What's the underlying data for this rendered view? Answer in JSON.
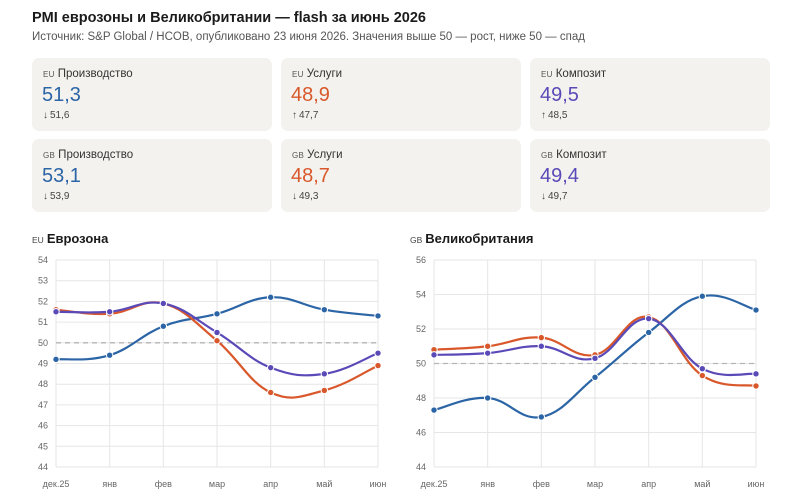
{
  "header": {
    "title": "PMI еврозоны и Великобритании — flash за июнь 2026",
    "subtitle": "Источник: S&P Global / HCOB, опубликовано 23 июня 2026. Значения выше 50 — рост, ниже 50 — спад"
  },
  "colors": {
    "manufacturing": "#2b65a6",
    "services": "#d9582b",
    "composite": "#5a4ab8",
    "threshold": "#b5b5b5",
    "grid": "#e6e6e6",
    "card_bg": "#f3f2ee"
  },
  "cards": [
    {
      "region": "EU",
      "label": "Производство",
      "value": "51,3",
      "prev": "51,6",
      "direction": "down",
      "arrow": "↓",
      "series": "manufacturing"
    },
    {
      "region": "EU",
      "label": "Услуги",
      "value": "48,9",
      "prev": "47,7",
      "direction": "up",
      "arrow": "↑",
      "series": "services"
    },
    {
      "region": "EU",
      "label": "Композит",
      "value": "49,5",
      "prev": "48,5",
      "direction": "up",
      "arrow": "↑",
      "series": "composite"
    },
    {
      "region": "GB",
      "label": "Производство",
      "value": "53,1",
      "prev": "53,9",
      "direction": "down",
      "arrow": "↓",
      "series": "manufacturing"
    },
    {
      "region": "GB",
      "label": "Услуги",
      "value": "48,7",
      "prev": "49,3",
      "direction": "down",
      "arrow": "↓",
      "series": "services"
    },
    {
      "region": "GB",
      "label": "Композит",
      "value": "49,4",
      "prev": "49,7",
      "direction": "down",
      "arrow": "↓",
      "series": "composite"
    }
  ],
  "chart_data": [
    {
      "type": "line",
      "region": "EU",
      "title": "Еврозона",
      "categories": [
        "дек.25",
        "янв",
        "фев",
        "мар",
        "апр",
        "май",
        "июн"
      ],
      "ylim": [
        44,
        54
      ],
      "yticks": [
        44,
        45,
        46,
        47,
        48,
        49,
        50,
        51,
        52,
        53,
        54
      ],
      "threshold": 50,
      "grid": true,
      "series": [
        {
          "key": "manufacturing",
          "values": [
            49.2,
            49.4,
            50.8,
            51.4,
            52.2,
            51.6,
            51.3
          ]
        },
        {
          "key": "services",
          "values": [
            51.6,
            51.4,
            51.9,
            50.1,
            47.6,
            47.7,
            48.9
          ]
        },
        {
          "key": "composite",
          "values": [
            51.5,
            51.5,
            51.9,
            50.5,
            48.8,
            48.5,
            49.5
          ]
        }
      ]
    },
    {
      "type": "line",
      "region": "GB",
      "title": "Великобритания",
      "categories": [
        "дек.25",
        "янв",
        "фев",
        "мар",
        "апр",
        "май",
        "июн"
      ],
      "ylim": [
        44,
        56
      ],
      "yticks": [
        44,
        46,
        48,
        50,
        52,
        54,
        56
      ],
      "threshold": 50,
      "grid": true,
      "series": [
        {
          "key": "manufacturing",
          "values": [
            47.3,
            48.0,
            46.9,
            49.2,
            51.8,
            53.9,
            53.1
          ]
        },
        {
          "key": "services",
          "values": [
            50.8,
            51.0,
            51.5,
            50.5,
            52.7,
            49.3,
            48.7
          ]
        },
        {
          "key": "composite",
          "values": [
            50.5,
            50.6,
            51.0,
            50.3,
            52.6,
            49.7,
            49.4
          ]
        }
      ]
    }
  ]
}
